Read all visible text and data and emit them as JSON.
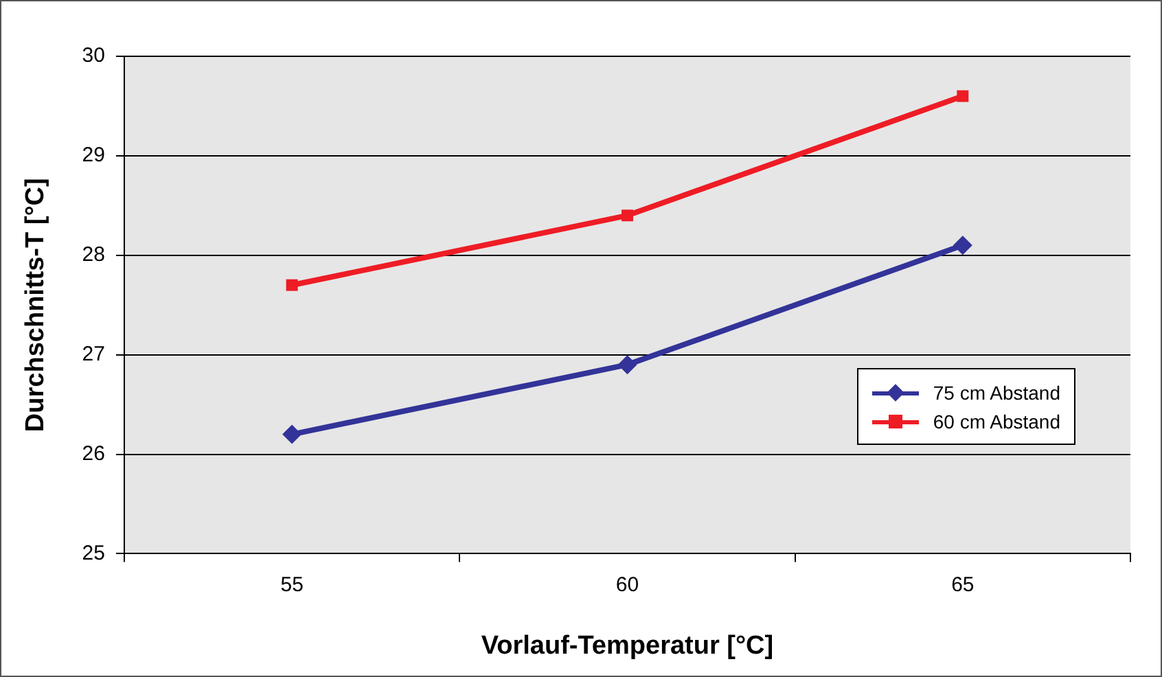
{
  "chart_data": {
    "type": "line",
    "xlabel": "Vorlauf-Temperatur [°C]",
    "ylabel": "Durchschnitts-T [°C]",
    "categories": [
      "55",
      "60",
      "65"
    ],
    "series": [
      {
        "name": "75 cm Abstand",
        "color": "#333399",
        "values": [
          26.2,
          26.9,
          28.1
        ],
        "marker": "diamond"
      },
      {
        "name": "60 cm Abstand",
        "color": "#ee1c25",
        "values": [
          27.7,
          28.4,
          29.6
        ],
        "marker": "square"
      }
    ],
    "ylim": [
      25,
      30
    ],
    "yticks": [
      25,
      26,
      27,
      28,
      29,
      30
    ],
    "grid": "y",
    "legend": "right",
    "line_style": "solid"
  }
}
